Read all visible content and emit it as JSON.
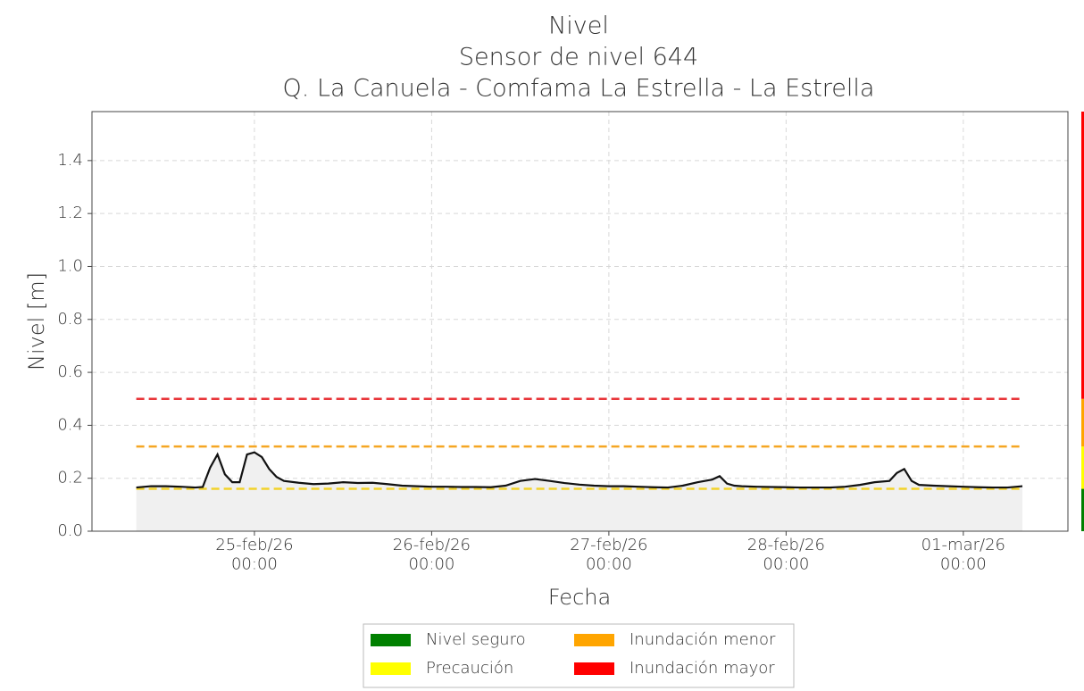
{
  "chart_data": {
    "type": "line",
    "title": [
      "Nivel",
      "Sensor de nivel 644",
      "Q. La Canuela - Comfama La Estrella - La Estrella"
    ],
    "xlabel": "Fecha",
    "ylabel": "Nivel [m]",
    "xlim": [
      "2026-02-24T02:00",
      "2026-03-01T14:10"
    ],
    "ylim": [
      0,
      1.585
    ],
    "xticks": [
      {
        "value": "2026-02-25T00:00",
        "label": "25-feb/26\n00:00"
      },
      {
        "value": "2026-02-26T00:00",
        "label": "26-feb/26\n00:00"
      },
      {
        "value": "2026-02-27T00:00",
        "label": "27-feb/26\n00:00"
      },
      {
        "value": "2026-02-28T00:00",
        "label": "28-feb/26\n00:00"
      },
      {
        "value": "2026-03-01T00:00",
        "label": "01-mar/26\n00:00"
      }
    ],
    "yticks": [
      {
        "value": 0,
        "label": "0.0"
      },
      0.2,
      0.4,
      0.6,
      0.8,
      {
        "value": 1,
        "label": "1.0"
      },
      1.2,
      1.4
    ],
    "grid": true,
    "x": [
      "2026-02-24T08:00",
      "2026-02-24T10:00",
      "2026-02-24T12:00",
      "2026-02-24T14:00",
      "2026-02-24T16:00",
      "2026-02-24T17:00",
      "2026-02-24T18:00",
      "2026-02-24T19:00",
      "2026-02-24T20:00",
      "2026-02-24T21:00",
      "2026-02-24T22:00",
      "2026-02-24T23:00",
      "2026-02-25T00:00",
      "2026-02-25T01:00",
      "2026-02-25T02:00",
      "2026-02-25T03:00",
      "2026-02-25T04:00",
      "2026-02-25T06:00",
      "2026-02-25T08:00",
      "2026-02-25T10:00",
      "2026-02-25T12:00",
      "2026-02-25T14:00",
      "2026-02-25T16:00",
      "2026-02-25T18:00",
      "2026-02-25T20:00",
      "2026-02-25T22:00",
      "2026-02-26T00:00",
      "2026-02-26T02:00",
      "2026-02-26T04:00",
      "2026-02-26T06:00",
      "2026-02-26T08:00",
      "2026-02-26T10:00",
      "2026-02-26T12:00",
      "2026-02-26T14:00",
      "2026-02-26T16:00",
      "2026-02-26T18:00",
      "2026-02-26T20:00",
      "2026-02-26T22:00",
      "2026-02-27T00:00",
      "2026-02-27T02:00",
      "2026-02-27T04:00",
      "2026-02-27T06:00",
      "2026-02-27T08:00",
      "2026-02-27T10:00",
      "2026-02-27T12:00",
      "2026-02-27T13:00",
      "2026-02-27T14:00",
      "2026-02-27T15:00",
      "2026-02-27T16:00",
      "2026-02-27T17:00",
      "2026-02-27T18:00",
      "2026-02-27T20:00",
      "2026-02-27T22:00",
      "2026-02-28T00:00",
      "2026-02-28T02:00",
      "2026-02-28T04:00",
      "2026-02-28T06:00",
      "2026-02-28T08:00",
      "2026-02-28T10:00",
      "2026-02-28T12:00",
      "2026-02-28T14:00",
      "2026-02-28T15:00",
      "2026-02-28T16:00",
      "2026-02-28T17:00",
      "2026-02-28T18:00",
      "2026-02-28T20:00",
      "2026-02-28T22:00",
      "2026-03-01T00:00",
      "2026-03-01T02:00",
      "2026-03-01T04:00",
      "2026-03-01T06:00",
      "2026-03-01T08:00"
    ],
    "series": [
      {
        "color": "#111111",
        "values": [
          0.165,
          0.17,
          0.17,
          0.168,
          0.165,
          0.167,
          0.24,
          0.29,
          0.215,
          0.185,
          0.185,
          0.29,
          0.298,
          0.28,
          0.235,
          0.205,
          0.19,
          0.183,
          0.178,
          0.18,
          0.185,
          0.182,
          0.183,
          0.178,
          0.172,
          0.17,
          0.168,
          0.168,
          0.167,
          0.167,
          0.166,
          0.172,
          0.19,
          0.197,
          0.19,
          0.182,
          0.176,
          0.172,
          0.17,
          0.17,
          0.168,
          0.166,
          0.165,
          0.172,
          0.185,
          0.19,
          0.195,
          0.208,
          0.18,
          0.172,
          0.17,
          0.168,
          0.167,
          0.166,
          0.165,
          0.165,
          0.165,
          0.168,
          0.175,
          0.185,
          0.19,
          0.22,
          0.235,
          0.19,
          0.175,
          0.172,
          0.17,
          0.168,
          0.166,
          0.165,
          0.165,
          0.17
        ]
      }
    ],
    "levels": [
      {
        "name": "Nivel seguro",
        "color": "#008000"
      },
      {
        "name": "Precaución",
        "color": "#ffff00",
        "threshold": 0.16,
        "line_color": "#f2d22a"
      },
      {
        "name": "Inundación menor",
        "color": "#ffa500",
        "threshold": 0.32,
        "line_color": "#f5a623"
      },
      {
        "name": "Inundación mayor",
        "color": "#ff0000",
        "threshold": 0.5,
        "line_color": "#e8363a"
      }
    ]
  }
}
